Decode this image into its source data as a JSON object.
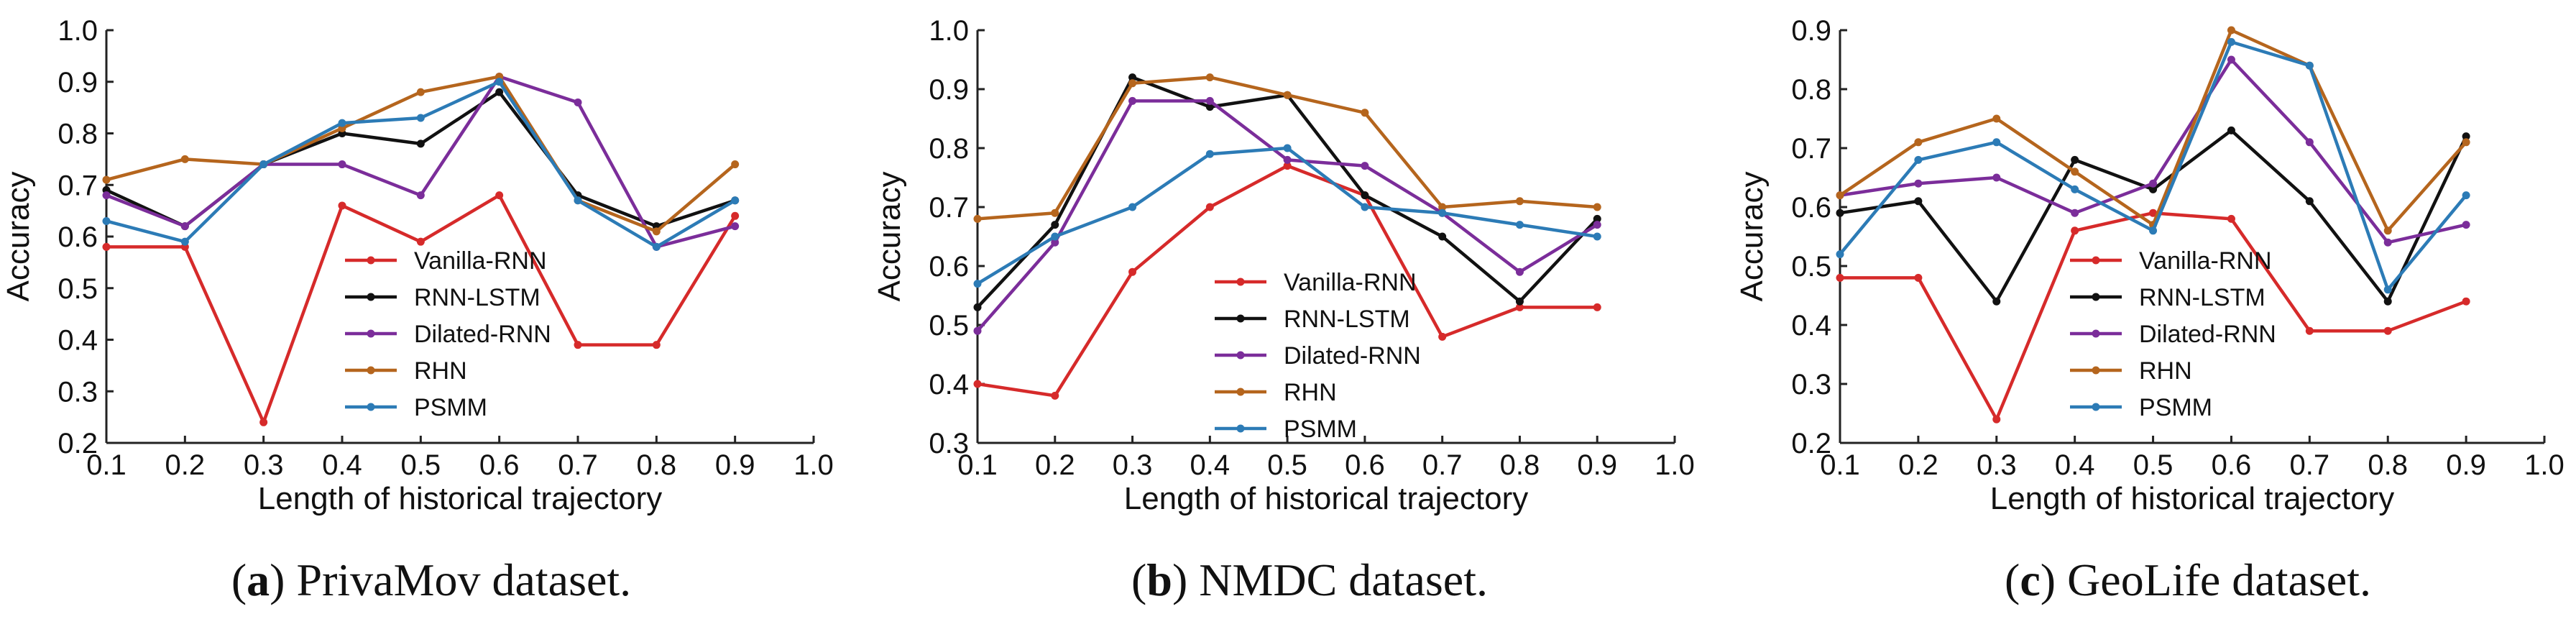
{
  "series_colors": {
    "Vanilla-RNN": "#d62a2a",
    "RNN-LSTM": "#111111",
    "Dilated-RNN": "#7b2d9a",
    "RHN": "#b5651d",
    "PSMM": "#2c7bb6"
  },
  "chart_data": [
    {
      "type": "line",
      "caption_letter": "a",
      "caption_text": " PrivaMov dataset.",
      "xlabel": "Length of historical trajectory",
      "ylabel": "Accuracy",
      "xlim": [
        0.1,
        1.0
      ],
      "ylim": [
        0.2,
        1.0
      ],
      "xticks": [
        "0.1",
        "0.2",
        "0.3",
        "0.4",
        "0.5",
        "0.6",
        "0.7",
        "0.8",
        "0.9",
        "1.0"
      ],
      "yticks": [
        "0.2",
        "0.3",
        "0.4",
        "0.5",
        "0.6",
        "0.7",
        "0.8",
        "0.9",
        "1.0"
      ],
      "x": [
        0.1,
        0.2,
        0.3,
        0.4,
        0.5,
        0.6,
        0.7,
        0.8,
        0.9
      ],
      "series": [
        {
          "name": "Vanilla-RNN",
          "values": [
            0.58,
            0.58,
            0.24,
            0.66,
            0.59,
            0.68,
            0.39,
            0.39,
            0.64
          ]
        },
        {
          "name": "RNN-LSTM",
          "values": [
            0.69,
            0.62,
            0.74,
            0.8,
            0.78,
            0.88,
            0.68,
            0.62,
            0.67
          ]
        },
        {
          "name": "Dilated-RNN",
          "values": [
            0.68,
            0.62,
            0.74,
            0.74,
            0.68,
            0.91,
            0.86,
            0.58,
            0.62
          ]
        },
        {
          "name": "RHN",
          "values": [
            0.71,
            0.75,
            0.74,
            0.81,
            0.88,
            0.91,
            0.67,
            0.61,
            0.74
          ]
        },
        {
          "name": "PSMM",
          "values": [
            0.63,
            0.59,
            0.74,
            0.82,
            0.83,
            0.9,
            0.67,
            0.58,
            0.67
          ]
        }
      ]
    },
    {
      "type": "line",
      "caption_letter": "b",
      "caption_text": " NMDC dataset.",
      "xlabel": "Length of historical trajectory",
      "ylabel": "Accuracy",
      "xlim": [
        0.1,
        1.0
      ],
      "ylim": [
        0.3,
        1.0
      ],
      "xticks": [
        "0.1",
        "0.2",
        "0.3",
        "0.4",
        "0.5",
        "0.6",
        "0.7",
        "0.8",
        "0.9",
        "1.0"
      ],
      "yticks": [
        "0.3",
        "0.4",
        "0.5",
        "0.6",
        "0.7",
        "0.8",
        "0.9",
        "1.0"
      ],
      "x": [
        0.1,
        0.2,
        0.3,
        0.4,
        0.5,
        0.6,
        0.7,
        0.8,
        0.9
      ],
      "series": [
        {
          "name": "Vanilla-RNN",
          "values": [
            0.4,
            0.38,
            0.59,
            0.7,
            0.77,
            0.72,
            0.48,
            0.53,
            0.53
          ]
        },
        {
          "name": "RNN-LSTM",
          "values": [
            0.53,
            0.67,
            0.92,
            0.87,
            0.89,
            0.72,
            0.65,
            0.54,
            0.68
          ]
        },
        {
          "name": "Dilated-RNN",
          "values": [
            0.49,
            0.64,
            0.88,
            0.88,
            0.78,
            0.77,
            0.69,
            0.59,
            0.67
          ]
        },
        {
          "name": "RHN",
          "values": [
            0.68,
            0.69,
            0.91,
            0.92,
            0.89,
            0.86,
            0.7,
            0.71,
            0.7
          ]
        },
        {
          "name": "PSMM",
          "values": [
            0.57,
            0.65,
            0.7,
            0.79,
            0.8,
            0.7,
            0.69,
            0.67,
            0.65
          ]
        }
      ]
    },
    {
      "type": "line",
      "caption_letter": "c",
      "caption_text": " GeoLife dataset.",
      "xlabel": "Length of historical trajectory",
      "ylabel": "Accuracy",
      "xlim": [
        0.1,
        1.0
      ],
      "ylim": [
        0.2,
        0.9
      ],
      "xticks": [
        "0.1",
        "0.2",
        "0.3",
        "0.4",
        "0.5",
        "0.6",
        "0.7",
        "0.8",
        "0.9",
        "1.0"
      ],
      "yticks": [
        "0.2",
        "0.3",
        "0.4",
        "0.5",
        "0.6",
        "0.7",
        "0.8",
        "0.9"
      ],
      "x": [
        0.1,
        0.2,
        0.3,
        0.4,
        0.5,
        0.6,
        0.7,
        0.8,
        0.9
      ],
      "series": [
        {
          "name": "Vanilla-RNN",
          "values": [
            0.48,
            0.48,
            0.24,
            0.56,
            0.59,
            0.58,
            0.39,
            0.39,
            0.44
          ]
        },
        {
          "name": "RNN-LSTM",
          "values": [
            0.59,
            0.61,
            0.44,
            0.68,
            0.63,
            0.73,
            0.61,
            0.44,
            0.72
          ]
        },
        {
          "name": "Dilated-RNN",
          "values": [
            0.62,
            0.64,
            0.65,
            0.59,
            0.64,
            0.85,
            0.71,
            0.54,
            0.57
          ]
        },
        {
          "name": "RHN",
          "values": [
            0.62,
            0.71,
            0.75,
            0.66,
            0.57,
            0.9,
            0.84,
            0.56,
            0.71
          ]
        },
        {
          "name": "PSMM",
          "values": [
            0.52,
            0.68,
            0.71,
            0.63,
            0.56,
            0.88,
            0.84,
            0.46,
            0.62
          ]
        }
      ]
    }
  ]
}
